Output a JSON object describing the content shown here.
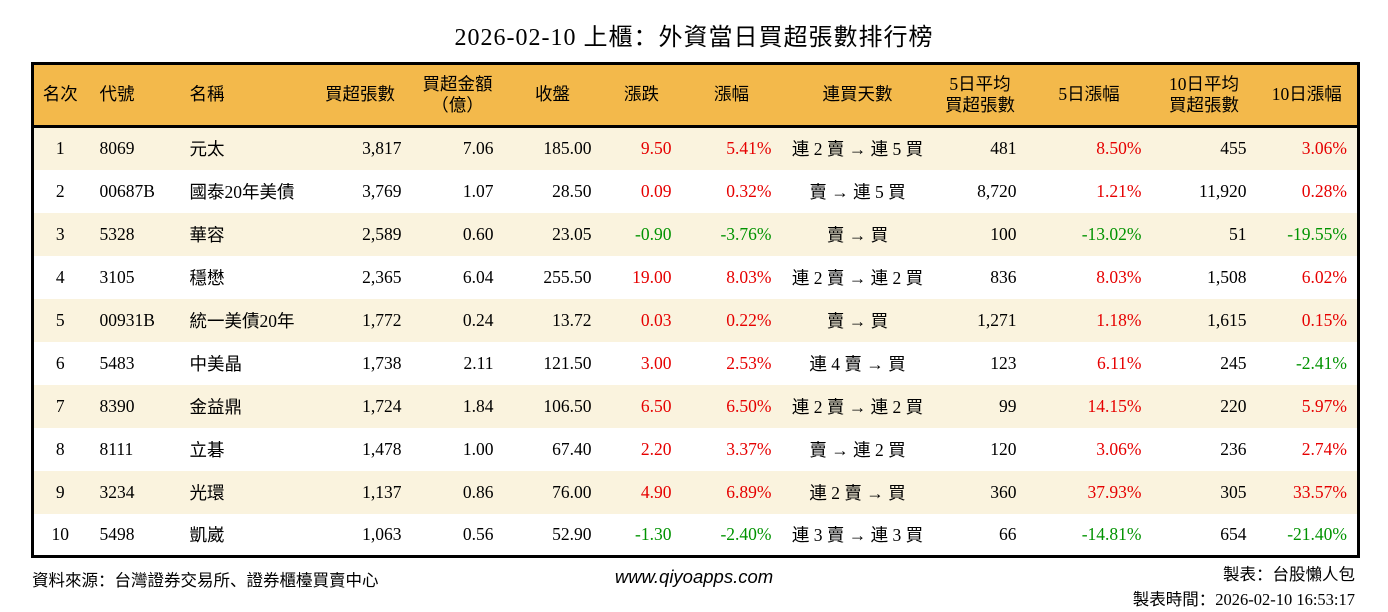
{
  "colors": {
    "header_bg": "#F3B94B",
    "row_alt_bg": "#FAF3DE",
    "rise_red": "#E60000",
    "fall_green": "#009300",
    "border": "#000000"
  },
  "chart_data": {
    "type": "table",
    "title": "2026-02-10 上櫃：外資當日買超張數排行榜",
    "columns": [
      {
        "key": "rank",
        "label": "名次",
        "align": "ac",
        "signed": false
      },
      {
        "key": "code",
        "label": "代號",
        "align": "al",
        "signed": false
      },
      {
        "key": "name",
        "label": "名稱",
        "align": "al",
        "signed": false
      },
      {
        "key": "net_buy_lots",
        "label": "買超張數",
        "align": "ar",
        "signed": false
      },
      {
        "key": "net_buy_amount",
        "label": "買超金額\n（億）",
        "align": "ar",
        "signed": false
      },
      {
        "key": "close",
        "label": "收盤",
        "align": "ar",
        "signed": false
      },
      {
        "key": "change",
        "label": "漲跌",
        "align": "ar",
        "signed": true
      },
      {
        "key": "change_pct",
        "label": "漲幅",
        "align": "ar",
        "signed": true
      },
      {
        "key": "streak",
        "label": "連買天數",
        "align": "ac",
        "signed": false
      },
      {
        "key": "avg5",
        "label": "5日平均\n買超張數",
        "align": "ar",
        "signed": false
      },
      {
        "key": "pct5",
        "label": "5日漲幅",
        "align": "ar",
        "signed": true
      },
      {
        "key": "avg10",
        "label": "10日平均\n買超張數",
        "align": "ar",
        "signed": false
      },
      {
        "key": "pct10",
        "label": "10日漲幅",
        "align": "ar",
        "signed": true
      }
    ],
    "rows": [
      {
        "rank": "1",
        "code": "8069",
        "name": "元太",
        "net_buy_lots": "3,817",
        "net_buy_amount": "7.06",
        "close": "185.00",
        "change": "9.50",
        "change_pct": "5.41%",
        "streak": "連 2 賣 → 連 5 買",
        "avg5": "481",
        "pct5": "8.50%",
        "avg10": "455",
        "pct10": "3.06%"
      },
      {
        "rank": "2",
        "code": "00687B",
        "name": "國泰20年美債",
        "net_buy_lots": "3,769",
        "net_buy_amount": "1.07",
        "close": "28.50",
        "change": "0.09",
        "change_pct": "0.32%",
        "streak": "賣 → 連 5 買",
        "avg5": "8,720",
        "pct5": "1.21%",
        "avg10": "11,920",
        "pct10": "0.28%"
      },
      {
        "rank": "3",
        "code": "5328",
        "name": "華容",
        "net_buy_lots": "2,589",
        "net_buy_amount": "0.60",
        "close": "23.05",
        "change": "-0.90",
        "change_pct": "-3.76%",
        "streak": "賣 → 買",
        "avg5": "100",
        "pct5": "-13.02%",
        "avg10": "51",
        "pct10": "-19.55%"
      },
      {
        "rank": "4",
        "code": "3105",
        "name": "穩懋",
        "net_buy_lots": "2,365",
        "net_buy_amount": "6.04",
        "close": "255.50",
        "change": "19.00",
        "change_pct": "8.03%",
        "streak": "連 2 賣 → 連 2 買",
        "avg5": "836",
        "pct5": "8.03%",
        "avg10": "1,508",
        "pct10": "6.02%"
      },
      {
        "rank": "5",
        "code": "00931B",
        "name": "統一美債20年",
        "net_buy_lots": "1,772",
        "net_buy_amount": "0.24",
        "close": "13.72",
        "change": "0.03",
        "change_pct": "0.22%",
        "streak": "賣 → 買",
        "avg5": "1,271",
        "pct5": "1.18%",
        "avg10": "1,615",
        "pct10": "0.15%"
      },
      {
        "rank": "6",
        "code": "5483",
        "name": "中美晶",
        "net_buy_lots": "1,738",
        "net_buy_amount": "2.11",
        "close": "121.50",
        "change": "3.00",
        "change_pct": "2.53%",
        "streak": "連 4 賣 → 買",
        "avg5": "123",
        "pct5": "6.11%",
        "avg10": "245",
        "pct10": "-2.41%"
      },
      {
        "rank": "7",
        "code": "8390",
        "name": "金益鼎",
        "net_buy_lots": "1,724",
        "net_buy_amount": "1.84",
        "close": "106.50",
        "change": "6.50",
        "change_pct": "6.50%",
        "streak": "連 2 賣 → 連 2 買",
        "avg5": "99",
        "pct5": "14.15%",
        "avg10": "220",
        "pct10": "5.97%"
      },
      {
        "rank": "8",
        "code": "8111",
        "name": "立碁",
        "net_buy_lots": "1,478",
        "net_buy_amount": "1.00",
        "close": "67.40",
        "change": "2.20",
        "change_pct": "3.37%",
        "streak": "賣 → 連 2 買",
        "avg5": "120",
        "pct5": "3.06%",
        "avg10": "236",
        "pct10": "2.74%"
      },
      {
        "rank": "9",
        "code": "3234",
        "name": "光環",
        "net_buy_lots": "1,137",
        "net_buy_amount": "0.86",
        "close": "76.00",
        "change": "4.90",
        "change_pct": "6.89%",
        "streak": "連 2 賣 → 買",
        "avg5": "360",
        "pct5": "37.93%",
        "avg10": "305",
        "pct10": "33.57%"
      },
      {
        "rank": "10",
        "code": "5498",
        "name": "凱崴",
        "net_buy_lots": "1,063",
        "net_buy_amount": "0.56",
        "close": "52.90",
        "change": "-1.30",
        "change_pct": "-2.40%",
        "streak": "連 3 賣 → 連 3 買",
        "avg5": "66",
        "pct5": "-14.81%",
        "avg10": "654",
        "pct10": "-21.40%"
      }
    ]
  },
  "footer": {
    "source": "資料來源：台灣證券交易所、證券櫃檯買賣中心",
    "url": "www.qiyoapps.com",
    "author": "製表：台股懶人包",
    "timestamp": "製表時間：2026-02-10 16:53:17"
  }
}
